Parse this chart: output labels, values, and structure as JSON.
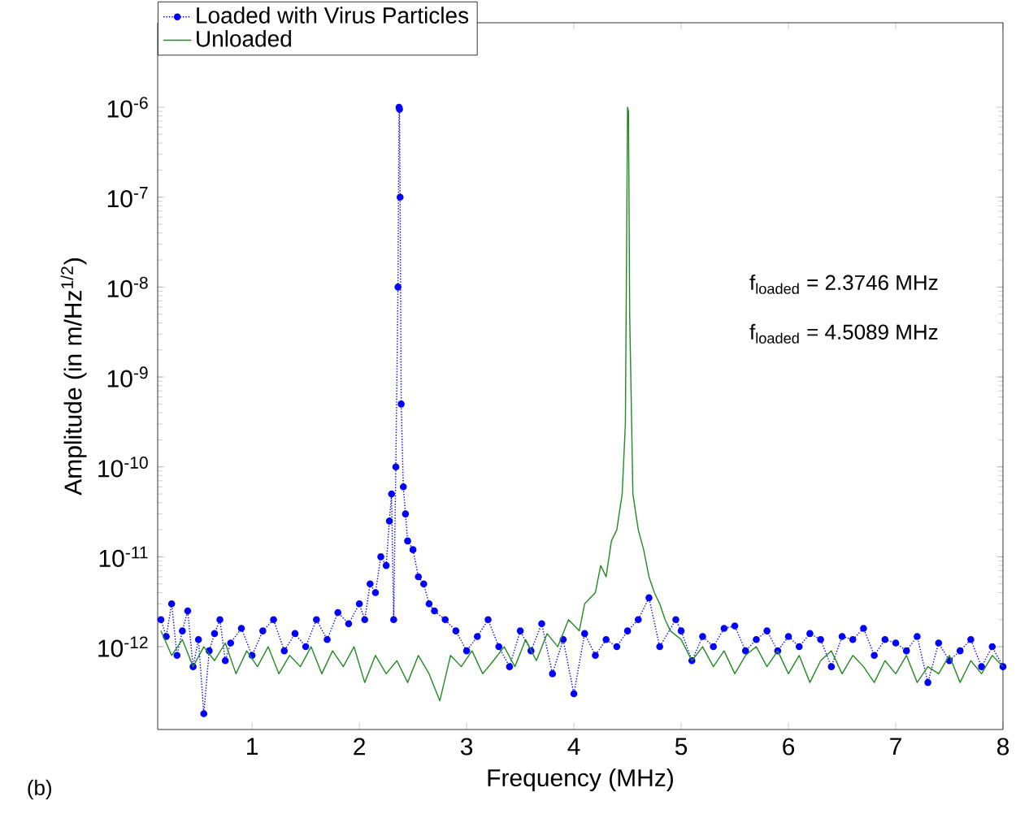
{
  "chart_data": {
    "type": "line",
    "xlabel": "Frequency (MHz)",
    "ylabel": "Amplitude (in m/Hz$^{1/2}$)",
    "annotations": [
      "f$_{loaded}$ = 2.3746 MHz",
      "f$_{loaded}$ = 4.5089 MHz",
      "(b)"
    ],
    "log": "y",
    "legend": "top left",
    "xlim": [
      0.12,
      8
    ],
    "xticks": [
      1,
      2,
      3,
      4,
      5,
      6,
      7,
      8
    ],
    "ylim": [
      1.2e-13,
      8.7e-06
    ],
    "yticks": [
      {
        "value": 1e-12,
        "label": "10$^{-12}$"
      },
      {
        "value": 1e-11,
        "label": "10$^{-11}$"
      },
      {
        "value": 1e-10,
        "label": "10$^{-10}$"
      },
      {
        "value": 1e-09,
        "label": "10$^{-9}$"
      },
      {
        "value": 1e-08,
        "label": "10$^{-8}$"
      },
      {
        "value": 1e-07,
        "label": "10$^{-7}$"
      },
      {
        "value": 1e-06,
        "label": "10$^{-6}$"
      }
    ],
    "series": [
      {
        "name": "Loaded with Virus Particles",
        "color": "#0000ff",
        "marker": "circle",
        "line_style": "dotted",
        "x": [
          0.15,
          0.2,
          0.25,
          0.3,
          0.35,
          0.4,
          0.45,
          0.5,
          0.55,
          0.6,
          0.65,
          0.7,
          0.75,
          0.8,
          0.9,
          1.0,
          1.1,
          1.2,
          1.3,
          1.4,
          1.5,
          1.6,
          1.7,
          1.8,
          1.9,
          2.0,
          2.05,
          2.1,
          2.15,
          2.2,
          2.25,
          2.28,
          2.3,
          2.32,
          2.34,
          2.36,
          2.37,
          2.3746,
          2.38,
          2.39,
          2.41,
          2.43,
          2.45,
          2.5,
          2.55,
          2.6,
          2.65,
          2.7,
          2.8,
          2.9,
          3.0,
          3.1,
          3.2,
          3.3,
          3.4,
          3.5,
          3.6,
          3.7,
          3.8,
          3.9,
          4.0,
          4.1,
          4.2,
          4.3,
          4.4,
          4.5,
          4.6,
          4.7,
          4.8,
          4.95,
          5.0,
          5.1,
          5.2,
          5.3,
          5.4,
          5.5,
          5.6,
          5.7,
          5.8,
          5.9,
          6.0,
          6.1,
          6.2,
          6.3,
          6.4,
          6.5,
          6.6,
          6.7,
          6.8,
          6.9,
          7.0,
          7.1,
          7.2,
          7.3,
          7.4,
          7.5,
          7.6,
          7.7,
          7.8,
          7.9,
          8.0
        ],
        "values": [
          2e-12,
          1.3e-12,
          3e-12,
          8e-13,
          1.5e-12,
          2.5e-12,
          6e-13,
          1.2e-12,
          1.8e-13,
          9e-13,
          1.4e-12,
          2e-12,
          7e-13,
          1.1e-12,
          1.6e-12,
          8e-13,
          1.5e-12,
          2e-12,
          9e-13,
          1.4e-12,
          1e-12,
          2e-12,
          1.2e-12,
          2.4e-12,
          1.8e-12,
          3e-12,
          2e-12,
          5e-12,
          4e-12,
          1e-11,
          8e-12,
          2.5e-11,
          5e-11,
          2e-12,
          1e-10,
          1e-08,
          1e-06,
          9.5e-07,
          1e-07,
          5e-10,
          6e-11,
          3e-11,
          1.5e-11,
          1.2e-11,
          6e-12,
          5e-12,
          3e-12,
          2.5e-12,
          2e-12,
          1.5e-12,
          9e-13,
          1.3e-12,
          2e-12,
          1e-12,
          6e-13,
          1.5e-12,
          9e-13,
          1.8e-12,
          5e-13,
          1.2e-12,
          3e-13,
          1.4e-12,
          8e-13,
          1.2e-12,
          1e-12,
          1.5e-12,
          2e-12,
          3.5e-12,
          1e-12,
          2e-12,
          1.5e-12,
          7e-13,
          1.3e-12,
          1e-12,
          1.6e-12,
          1.7e-12,
          9e-13,
          1.2e-12,
          1.5e-12,
          9e-13,
          1.3e-12,
          1e-12,
          1.4e-12,
          1.2e-12,
          6e-13,
          1.3e-12,
          1.2e-12,
          1.6e-12,
          8e-13,
          1.2e-12,
          1.1e-12,
          9e-13,
          1.3e-12,
          4e-13,
          1.1e-12,
          7e-13,
          9e-13,
          1.2e-12,
          6e-13,
          1e-12,
          6e-13
        ]
      },
      {
        "name": "Unloaded",
        "color": "#228b22",
        "marker": "none",
        "line_style": "solid",
        "x": [
          0.15,
          0.25,
          0.35,
          0.45,
          0.55,
          0.65,
          0.75,
          0.85,
          0.95,
          1.05,
          1.15,
          1.25,
          1.35,
          1.45,
          1.55,
          1.65,
          1.75,
          1.85,
          1.95,
          2.05,
          2.15,
          2.25,
          2.35,
          2.45,
          2.55,
          2.65,
          2.75,
          2.85,
          2.95,
          3.05,
          3.15,
          3.25,
          3.35,
          3.45,
          3.55,
          3.65,
          3.75,
          3.85,
          3.95,
          4.05,
          4.1,
          4.2,
          4.25,
          4.3,
          4.35,
          4.4,
          4.45,
          4.48,
          4.5,
          4.5089,
          4.52,
          4.55,
          4.6,
          4.65,
          4.7,
          4.75,
          4.8,
          4.85,
          4.9,
          5.0,
          5.1,
          5.2,
          5.3,
          5.4,
          5.5,
          5.6,
          5.7,
          5.8,
          5.9,
          6.0,
          6.1,
          6.2,
          6.3,
          6.4,
          6.5,
          6.6,
          6.7,
          6.8,
          6.9,
          7.0,
          7.1,
          7.2,
          7.3,
          7.4,
          7.5,
          7.6,
          7.7,
          7.8,
          7.9,
          8.0
        ],
        "values": [
          1.5e-12,
          8e-13,
          1.2e-12,
          6e-13,
          1e-12,
          7e-13,
          1.1e-12,
          5e-13,
          9e-13,
          6e-13,
          1e-12,
          5e-13,
          8e-13,
          6e-13,
          1e-12,
          5e-13,
          9e-13,
          6e-13,
          1e-12,
          4e-13,
          8e-13,
          5e-13,
          7e-13,
          4e-13,
          8e-13,
          5e-13,
          2.5e-13,
          8e-13,
          6e-13,
          9e-13,
          5e-13,
          7e-13,
          1e-12,
          6e-13,
          1.2e-12,
          7e-13,
          1.4e-12,
          1e-12,
          2e-12,
          1.5e-12,
          3e-12,
          4e-12,
          8e-12,
          6e-12,
          1.5e-11,
          2e-11,
          5e-11,
          3e-10,
          1e-06,
          9e-07,
          5e-09,
          5e-11,
          2e-11,
          1.2e-11,
          6e-12,
          4e-12,
          3e-12,
          2e-12,
          1.5e-12,
          1.2e-12,
          7e-13,
          1e-12,
          6e-13,
          9e-13,
          5e-13,
          8e-13,
          1e-12,
          6e-13,
          9e-13,
          5e-13,
          8e-13,
          4e-13,
          7e-13,
          9e-13,
          5e-13,
          8e-13,
          6e-13,
          4e-13,
          7e-13,
          5e-13,
          8e-13,
          4e-13,
          6e-13,
          5e-13,
          8e-13,
          4e-13,
          7e-13,
          5e-13,
          8e-13,
          6e-13
        ]
      }
    ]
  }
}
